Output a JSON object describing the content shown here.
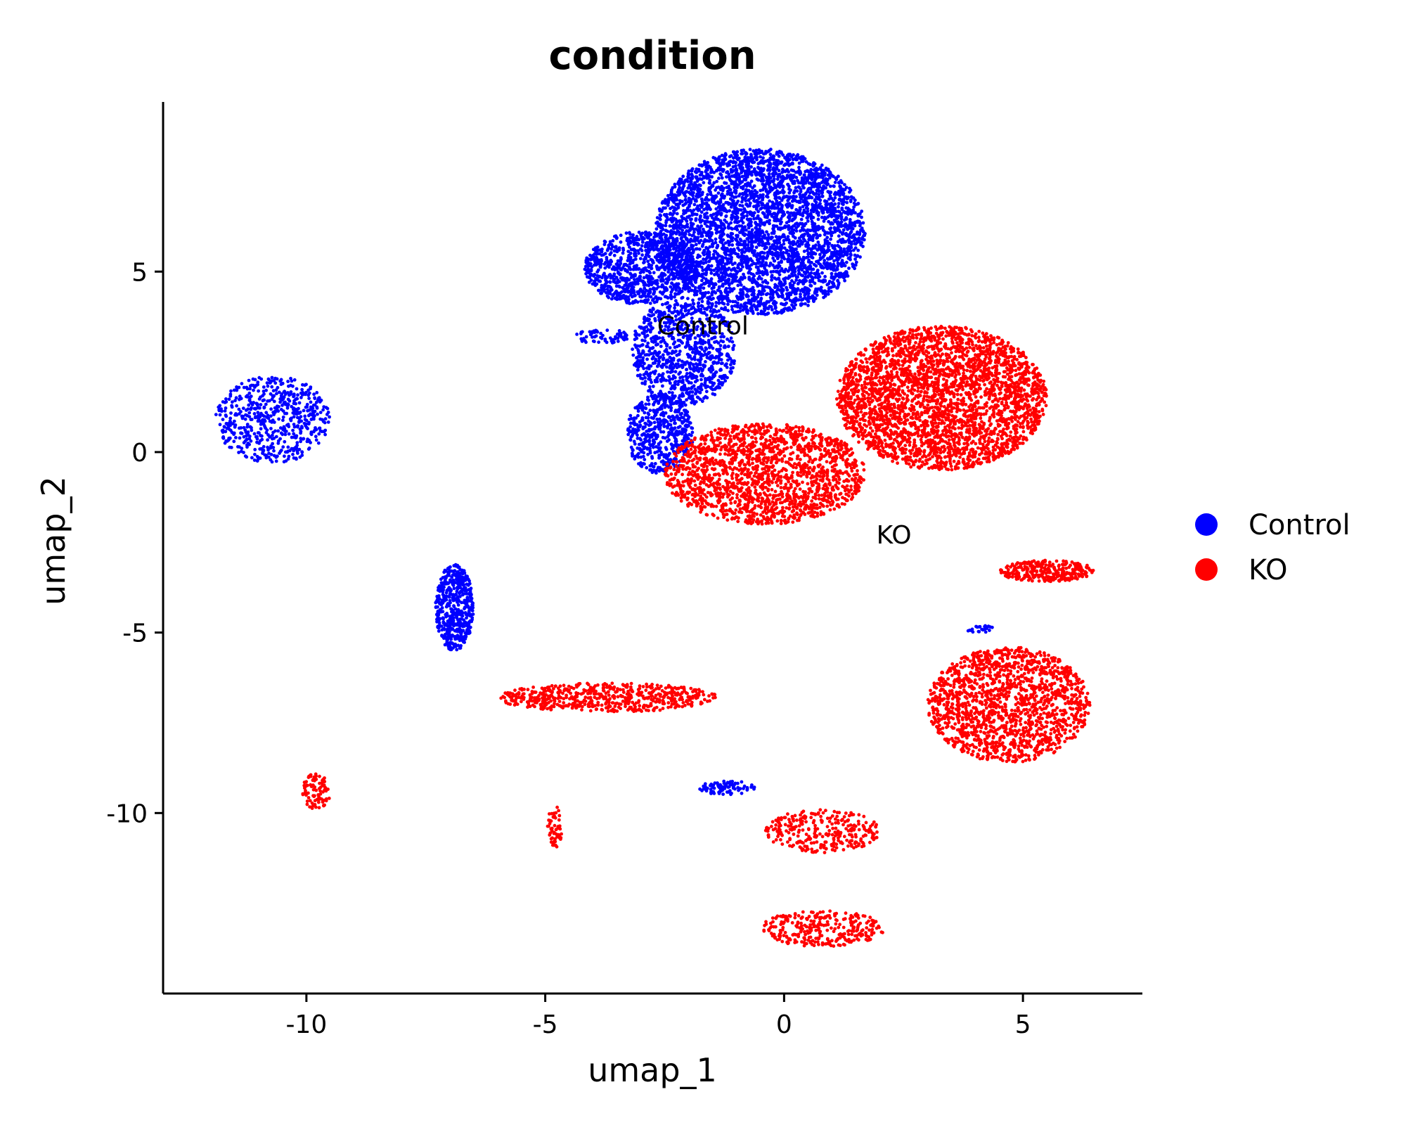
{
  "chart_data": {
    "type": "scatter",
    "title": "condition",
    "xlabel": "umap_1",
    "ylabel": "umap_2",
    "xlim": [
      -13,
      7.5
    ],
    "ylim": [
      -15,
      9.7
    ],
    "xticks": [
      -10,
      -5,
      0,
      5
    ],
    "xtick_labels": [
      "-10",
      "-5",
      "0",
      "5"
    ],
    "yticks": [
      -10,
      -5,
      0,
      5
    ],
    "ytick_labels": [
      "-10",
      "-5",
      "0",
      "5"
    ],
    "grid": false,
    "legend_position": "right",
    "series": [
      {
        "name": "Control",
        "color": "#0000FF",
        "label_position": [
          -1.7,
          3.5
        ],
        "clusters": [
          {
            "cx": -0.5,
            "cy": 6.1,
            "rx": 2.2,
            "ry": 2.3,
            "n": 3800
          },
          {
            "cx": -3.0,
            "cy": 5.1,
            "rx": 1.2,
            "ry": 1.0,
            "n": 900
          },
          {
            "cx": -2.1,
            "cy": 2.8,
            "rx": 1.1,
            "ry": 1.5,
            "n": 900
          },
          {
            "cx": -2.6,
            "cy": 0.5,
            "rx": 0.7,
            "ry": 1.1,
            "n": 500
          },
          {
            "cx": -10.7,
            "cy": 0.9,
            "rx": 1.2,
            "ry": 1.2,
            "n": 600
          },
          {
            "cx": -6.9,
            "cy": -4.3,
            "rx": 0.4,
            "ry": 1.2,
            "n": 500
          },
          {
            "cx": -3.8,
            "cy": 3.2,
            "rx": 0.6,
            "ry": 0.2,
            "n": 60
          },
          {
            "cx": -1.2,
            "cy": -9.3,
            "rx": 0.6,
            "ry": 0.2,
            "n": 80
          },
          {
            "cx": 4.1,
            "cy": -4.9,
            "rx": 0.3,
            "ry": 0.1,
            "n": 25
          }
        ]
      },
      {
        "name": "KO",
        "color": "#FF0000",
        "label_position": [
          2.3,
          -2.3
        ],
        "clusters": [
          {
            "cx": 3.3,
            "cy": 1.5,
            "rx": 2.2,
            "ry": 2.0,
            "n": 3200
          },
          {
            "cx": -0.4,
            "cy": -0.6,
            "rx": 2.1,
            "ry": 1.4,
            "n": 1800
          },
          {
            "cx": 4.7,
            "cy": -7.0,
            "rx": 1.7,
            "ry": 1.6,
            "n": 1600
          },
          {
            "cx": -3.7,
            "cy": -6.8,
            "rx": 2.3,
            "ry": 0.4,
            "n": 600
          },
          {
            "cx": 0.8,
            "cy": -10.5,
            "rx": 1.2,
            "ry": 0.6,
            "n": 300
          },
          {
            "cx": 0.8,
            "cy": -13.2,
            "rx": 1.3,
            "ry": 0.5,
            "n": 300
          },
          {
            "cx": -9.8,
            "cy": -9.4,
            "rx": 0.3,
            "ry": 0.5,
            "n": 90
          },
          {
            "cx": -4.8,
            "cy": -10.4,
            "rx": 0.15,
            "ry": 0.6,
            "n": 60
          },
          {
            "cx": 5.5,
            "cy": -3.3,
            "rx": 1.0,
            "ry": 0.3,
            "n": 300
          }
        ]
      }
    ]
  }
}
